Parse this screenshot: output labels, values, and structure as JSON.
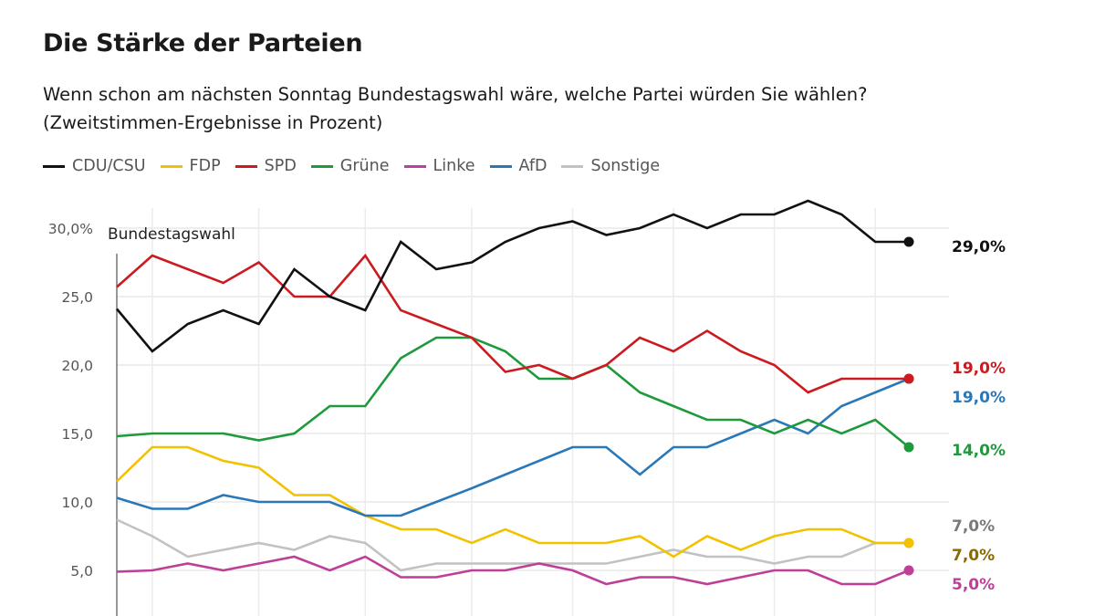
{
  "chart_data": {
    "type": "line",
    "title": "Die Stärke der Parteien",
    "subtitle": [
      "Wenn schon am nächsten Sonntag Bundestagswahl wäre, welche Partei würden Sie wählen?",
      "(Zweitstimmen-Ergebnisse in Prozent)"
    ],
    "xlabel": "",
    "ylabel": "",
    "ylim": [
      0,
      31
    ],
    "y_ticks": [
      {
        "value": 30,
        "label": "30,0%"
      },
      {
        "value": 25,
        "label": "25,0"
      },
      {
        "value": 20,
        "label": "20,0"
      },
      {
        "value": 15,
        "label": "15,0"
      },
      {
        "value": 10,
        "label": "10,0"
      },
      {
        "value": 5,
        "label": "5,0"
      }
    ],
    "grid": true,
    "legend_position": "top-left",
    "annotation": "Bundestagswahl",
    "series": [
      {
        "name": "CDU/CSU",
        "color": "#111111",
        "label_color": "#111111",
        "end_label": "29,0%",
        "values": [
          24.1,
          21,
          23,
          24,
          23,
          27,
          25,
          24,
          29,
          27,
          27.5,
          29,
          30,
          30.5,
          29.5,
          30,
          31,
          30,
          31,
          31,
          32,
          31,
          29,
          29
        ]
      },
      {
        "name": "FDP",
        "color": "#f2c200",
        "label_color": "#8a6a00",
        "end_label": "7,0%",
        "values": [
          11.5,
          14,
          14,
          13,
          12.5,
          10.5,
          10.5,
          9,
          8,
          8,
          7,
          8,
          7,
          7,
          7,
          7.5,
          6,
          7.5,
          6.5,
          7.5,
          8,
          8,
          7,
          7
        ]
      },
      {
        "name": "SPD",
        "color": "#cc1a1f",
        "label_color": "#cc1a1f",
        "end_label": "19,0%",
        "values": [
          25.7,
          28,
          27,
          26,
          27.5,
          25,
          25,
          28,
          24,
          23,
          22,
          19.5,
          20,
          19,
          20,
          22,
          21,
          22.5,
          21,
          20,
          18,
          19,
          19,
          19
        ]
      },
      {
        "name": "Grüne",
        "color": "#1e9a3c",
        "label_color": "#1e9a3c",
        "end_label": "14,0%",
        "values": [
          14.8,
          15,
          15,
          15,
          14.5,
          15,
          17,
          17,
          20.5,
          22,
          22,
          21,
          19,
          19,
          20,
          18,
          17,
          16,
          16,
          15,
          16,
          15,
          16,
          14
        ]
      },
      {
        "name": "Linke",
        "color": "#be3f98",
        "label_color": "#be3f98",
        "end_label": "5,0%",
        "values": [
          4.9,
          5,
          5.5,
          5,
          5.5,
          6,
          5,
          6,
          4.5,
          4.5,
          5,
          5,
          5.5,
          5,
          4,
          4.5,
          4.5,
          4,
          4.5,
          5,
          5,
          4,
          4,
          5
        ]
      },
      {
        "name": "AfD",
        "color": "#2b78b8",
        "label_color": "#2b78b8",
        "end_label": "19,0%",
        "values": [
          10.3,
          9.5,
          9.5,
          10.5,
          10,
          10,
          10,
          9,
          9,
          10,
          11,
          12,
          13,
          14,
          14,
          12,
          14,
          14,
          15,
          16,
          15,
          17,
          18,
          19
        ]
      },
      {
        "name": "Sonstige",
        "color": "#c2c2c2",
        "label_color": "#7a7a7a",
        "end_label": "7,0%",
        "values": [
          8.7,
          7.5,
          6,
          6.5,
          7,
          6.5,
          7.5,
          7,
          5,
          5.5,
          5.5,
          5.5,
          5.5,
          5.5,
          5.5,
          6,
          6.5,
          6,
          6,
          5.5,
          6,
          6,
          7,
          7
        ]
      }
    ]
  }
}
